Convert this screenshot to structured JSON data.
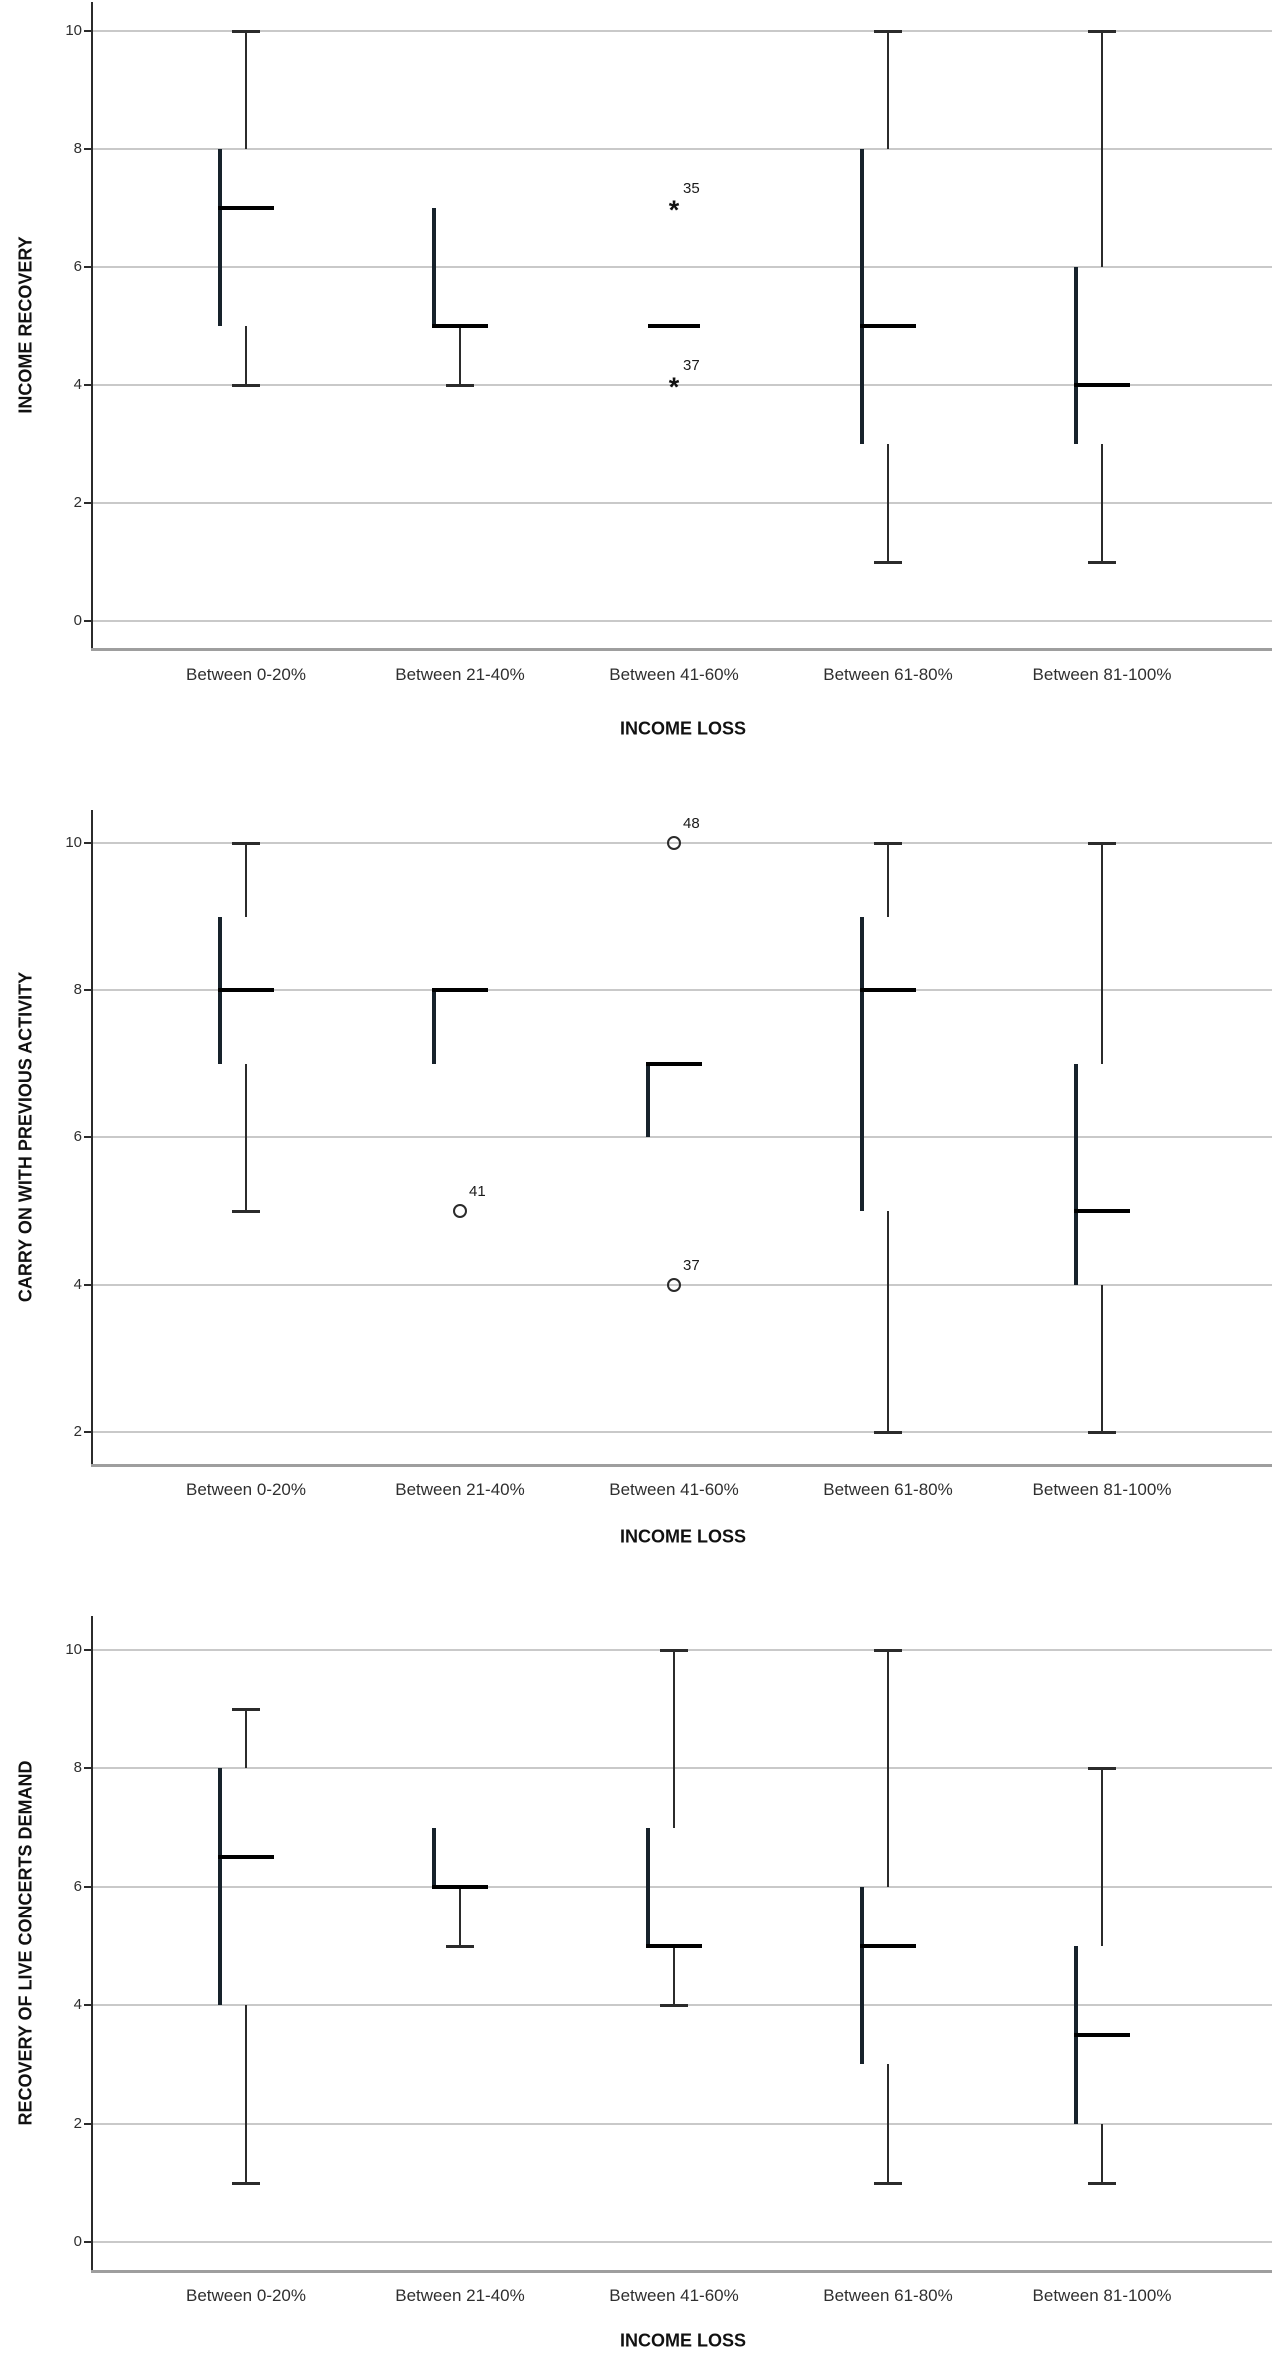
{
  "colors": {
    "box_fill": "#3C87C8",
    "box_border": "#17222B",
    "median": "#000000",
    "whisker": "#2B2B2B",
    "gridline": "#C9C9C9",
    "axis": "#2B2B2B",
    "frame": "#9E9E9E",
    "text": "#2F2F2F",
    "background": "#FFFFFF"
  },
  "chart_data": "see charts[] below",
  "charts": [
    {
      "type": "boxplot",
      "ylabel": "INCOME RECOVERY",
      "xlabel": "INCOME LOSS",
      "yticks": [
        0,
        2,
        4,
        6,
        8,
        10
      ],
      "ylim": [
        0,
        10
      ],
      "grid": true,
      "categories": [
        "Between 0-20%",
        "Between 21-40%",
        "Between 41-60%",
        "Between 61-80%",
        "Between 81-100%"
      ],
      "boxes": [
        {
          "category": "Between 0-20%",
          "whisker_low": 4,
          "q1": 5,
          "median": 7,
          "q3": 8,
          "whisker_high": 10,
          "outliers": []
        },
        {
          "category": "Between 21-40%",
          "whisker_low": 4,
          "q1": 5,
          "median": 5,
          "q3": 7,
          "whisker_high": 7,
          "outliers": []
        },
        {
          "category": "Between 41-60%",
          "whisker_low": 5,
          "q1": 5,
          "median": 5,
          "q3": 5,
          "whisker_high": 5,
          "outliers": [
            {
              "value": 7,
              "label": "35",
              "marker": "asterisk"
            },
            {
              "value": 4,
              "label": "37",
              "marker": "asterisk"
            }
          ]
        },
        {
          "category": "Between 61-80%",
          "whisker_low": 1,
          "q1": 3,
          "median": 5,
          "q3": 8,
          "whisker_high": 10,
          "outliers": []
        },
        {
          "category": "Between 81-100%",
          "whisker_low": 1,
          "q1": 3,
          "median": 4,
          "q3": 6,
          "whisker_high": 10,
          "outliers": []
        }
      ]
    },
    {
      "type": "boxplot",
      "ylabel": "CARRY ON WITH PREVIOUS ACTIVITY",
      "xlabel": "INCOME LOSS",
      "yticks": [
        2,
        4,
        6,
        8,
        10
      ],
      "ylim": [
        2,
        10
      ],
      "grid": true,
      "categories": [
        "Between 0-20%",
        "Between 21-40%",
        "Between 41-60%",
        "Between 61-80%",
        "Between 81-100%"
      ],
      "boxes": [
        {
          "category": "Between 0-20%",
          "whisker_low": 5,
          "q1": 7,
          "median": 8,
          "q3": 9,
          "whisker_high": 10,
          "outliers": []
        },
        {
          "category": "Between 21-40%",
          "whisker_low": 7,
          "q1": 7,
          "median": 8,
          "q3": 8,
          "whisker_high": 8,
          "outliers": [
            {
              "value": 5,
              "label": "41",
              "marker": "circle"
            }
          ]
        },
        {
          "category": "Between 41-60%",
          "whisker_low": 6,
          "q1": 6,
          "median": 7,
          "q3": 7,
          "whisker_high": 7,
          "outliers": [
            {
              "value": 10,
              "label": "48",
              "marker": "circle"
            },
            {
              "value": 4,
              "label": "37",
              "marker": "circle"
            }
          ]
        },
        {
          "category": "Between 61-80%",
          "whisker_low": 2,
          "q1": 5,
          "median": 8,
          "q3": 9,
          "whisker_high": 10,
          "outliers": []
        },
        {
          "category": "Between 81-100%",
          "whisker_low": 2,
          "q1": 4,
          "median": 5,
          "q3": 7,
          "whisker_high": 10,
          "outliers": []
        }
      ]
    },
    {
      "type": "boxplot",
      "ylabel": "RECOVERY OF LIVE CONCERTS DEMAND",
      "xlabel": "INCOME LOSS",
      "yticks": [
        0,
        2,
        4,
        6,
        8,
        10
      ],
      "ylim": [
        0,
        10
      ],
      "grid": true,
      "categories": [
        "Between 0-20%",
        "Between 21-40%",
        "Between 41-60%",
        "Between 61-80%",
        "Between 81-100%"
      ],
      "boxes": [
        {
          "category": "Between 0-20%",
          "whisker_low": 1,
          "q1": 4,
          "median": 6.5,
          "q3": 8,
          "whisker_high": 9,
          "outliers": []
        },
        {
          "category": "Between 21-40%",
          "whisker_low": 5,
          "q1": 6,
          "median": 6,
          "q3": 7,
          "whisker_high": 7,
          "outliers": []
        },
        {
          "category": "Between 41-60%",
          "whisker_low": 4,
          "q1": 5,
          "median": 5,
          "q3": 7,
          "whisker_high": 10,
          "outliers": []
        },
        {
          "category": "Between 61-80%",
          "whisker_low": 1,
          "q1": 3,
          "median": 5,
          "q3": 6,
          "whisker_high": 10,
          "outliers": []
        },
        {
          "category": "Between 81-100%",
          "whisker_low": 1,
          "q1": 2,
          "median": 3.5,
          "q3": 5,
          "whisker_high": 8,
          "outliers": []
        }
      ]
    }
  ]
}
